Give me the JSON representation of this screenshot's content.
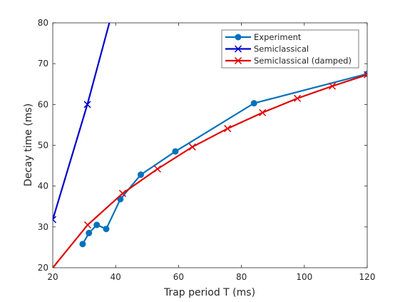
{
  "chart_data": {
    "type": "line",
    "xlabel": "Trap period T (ms)",
    "ylabel": "Decay time (ms)",
    "xlim": [
      20,
      120
    ],
    "ylim": [
      20,
      80
    ],
    "xticks": [
      20,
      40,
      60,
      80,
      100,
      120
    ],
    "yticks": [
      20,
      30,
      40,
      50,
      60,
      70,
      80
    ],
    "grid": false,
    "legend_position": "top-right",
    "series": [
      {
        "name": "Experiment",
        "color": "#0072BD",
        "marker": "circle",
        "points": [
          [
            29.5,
            25.8
          ],
          [
            31.5,
            28.5
          ],
          [
            34.0,
            30.5
          ],
          [
            37.0,
            29.5
          ],
          [
            41.5,
            36.8
          ],
          [
            48.0,
            42.8
          ],
          [
            59.0,
            48.5
          ],
          [
            84.0,
            60.3
          ],
          [
            120.0,
            67.5
          ]
        ]
      },
      {
        "name": "Semiclassical",
        "color": "#0000CC",
        "marker": "x",
        "points": [
          [
            20.0,
            31.8
          ],
          [
            31.0,
            60.0
          ],
          [
            38.0,
            80.0
          ]
        ],
        "marker_points": [
          [
            20.0,
            31.8
          ],
          [
            31.0,
            60.0
          ]
        ]
      },
      {
        "name": "Semiclassical (damped)",
        "color": "#E00000",
        "marker": "x",
        "points": [
          [
            20.0,
            20.0
          ],
          [
            31.1,
            30.5
          ],
          [
            42.2,
            38.2
          ],
          [
            53.3,
            44.2
          ],
          [
            64.4,
            49.6
          ],
          [
            75.6,
            54.1
          ],
          [
            86.7,
            58.0
          ],
          [
            97.8,
            61.5
          ],
          [
            108.9,
            64.5
          ],
          [
            120.0,
            67.3
          ]
        ]
      }
    ]
  }
}
